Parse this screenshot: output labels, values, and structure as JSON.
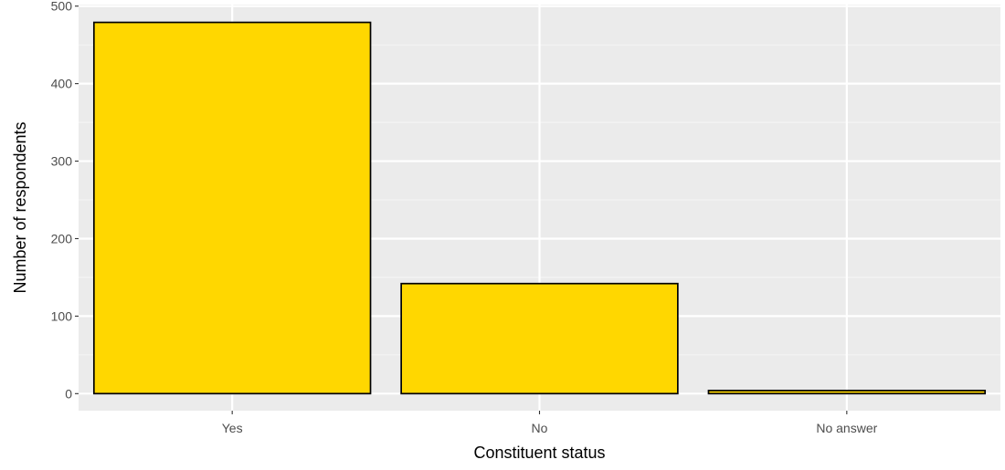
{
  "chart_data": {
    "type": "bar",
    "categories": [
      "Yes",
      "No",
      "No answer"
    ],
    "values": [
      479,
      142,
      4
    ],
    "title": "",
    "xlabel": "Constituent status",
    "ylabel": "Number of respondents",
    "ylim": [
      -22,
      502
    ],
    "yticks": [
      0,
      100,
      200,
      300,
      400,
      500
    ],
    "grid": true,
    "legend": "none"
  },
  "colors": {
    "panel_background": "#ebebeb",
    "grid_major": "#ffffff",
    "grid_minor": "#f5f5f5",
    "bar_fill": "#ffd700",
    "bar_outline": "#000000",
    "tick_text": "#4d4d4d",
    "axis_title_text": "#000000"
  }
}
